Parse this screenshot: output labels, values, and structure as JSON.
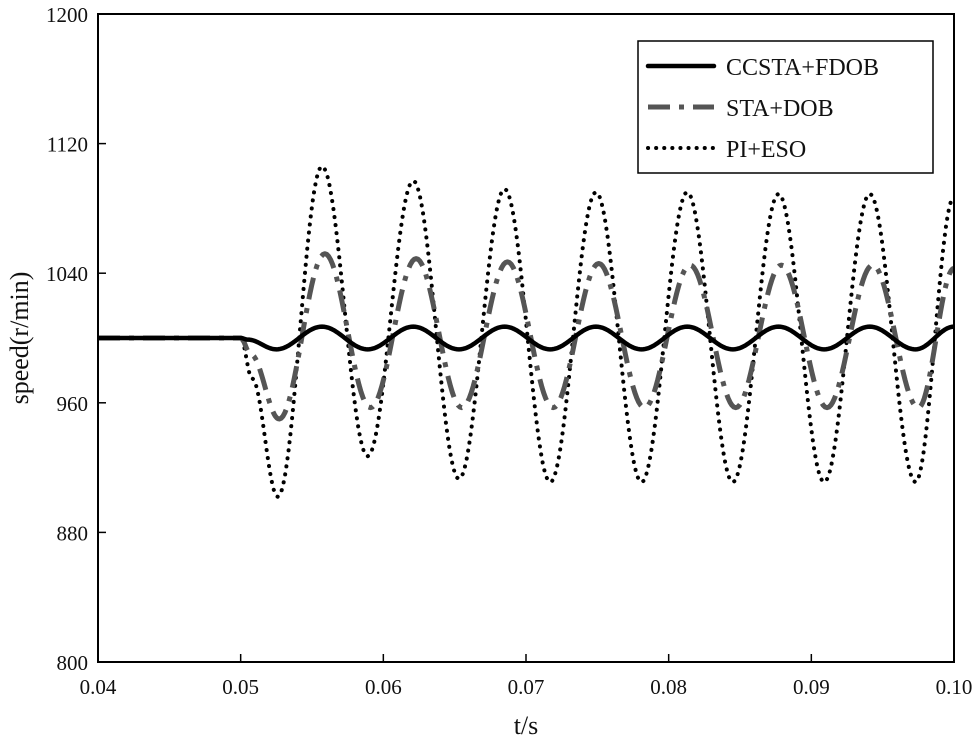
{
  "chart_data": {
    "type": "line",
    "title": "",
    "xlabel": "t/s",
    "ylabel": "speed(r/min)",
    "xlim": [
      0.04,
      0.1
    ],
    "ylim": [
      800,
      1200
    ],
    "xticks": [
      0.04,
      0.05,
      0.06,
      0.07,
      0.08,
      0.09,
      0.1
    ],
    "yticks": [
      800,
      880,
      960,
      1040,
      1120,
      1200
    ],
    "xtick_labels": [
      "0.04",
      "0.05",
      "0.06",
      "0.07",
      "0.08",
      "0.09",
      "0.10"
    ],
    "ytick_labels": [
      "800",
      "880",
      "960",
      "1040",
      "1120",
      "1200"
    ],
    "grid": false,
    "legend_position": "top-right",
    "series": [
      {
        "name": "CCSTA+FDOB",
        "style": "solid",
        "color": "#000000",
        "x": [
          0.04,
          0.05,
          0.0505,
          0.0525,
          0.0557,
          0.0589,
          0.0621,
          0.0653,
          0.0685,
          0.0717,
          0.0749,
          0.0781,
          0.0813,
          0.0845,
          0.0877,
          0.0909,
          0.0941,
          0.0973,
          0.1
        ],
        "y": [
          1000,
          1000,
          999,
          993,
          1007,
          993,
          1007,
          993,
          1007,
          993,
          1007,
          993,
          1007,
          993,
          1007,
          993,
          1007,
          993,
          1007
        ]
      },
      {
        "name": "STA+DOB",
        "style": "dashdot",
        "color": "#555555",
        "x": [
          0.04,
          0.05,
          0.0507,
          0.0527,
          0.0559,
          0.0591,
          0.0623,
          0.0655,
          0.0687,
          0.0719,
          0.0751,
          0.0783,
          0.0815,
          0.0847,
          0.0879,
          0.0911,
          0.0943,
          0.0975,
          0.1
        ],
        "y": [
          1000,
          1000,
          990,
          950,
          1052,
          957,
          1049,
          957,
          1047,
          957,
          1046,
          957,
          1045,
          957,
          1045,
          957,
          1045,
          957,
          1043
        ]
      },
      {
        "name": "PI+ESO",
        "style": "dotted",
        "color": "#000000",
        "x": [
          0.04,
          0.05,
          0.0508,
          0.0526,
          0.0557,
          0.0589,
          0.0621,
          0.0653,
          0.0685,
          0.0717,
          0.0749,
          0.0781,
          0.0813,
          0.0845,
          0.0877,
          0.0909,
          0.0941,
          0.0973,
          0.1
        ],
        "y": [
          1000,
          1000,
          975,
          902,
          1106,
          927,
          1097,
          913,
          1092,
          911,
          1090,
          911,
          1090,
          911,
          1089,
          911,
          1089,
          911,
          1087
        ]
      }
    ]
  }
}
